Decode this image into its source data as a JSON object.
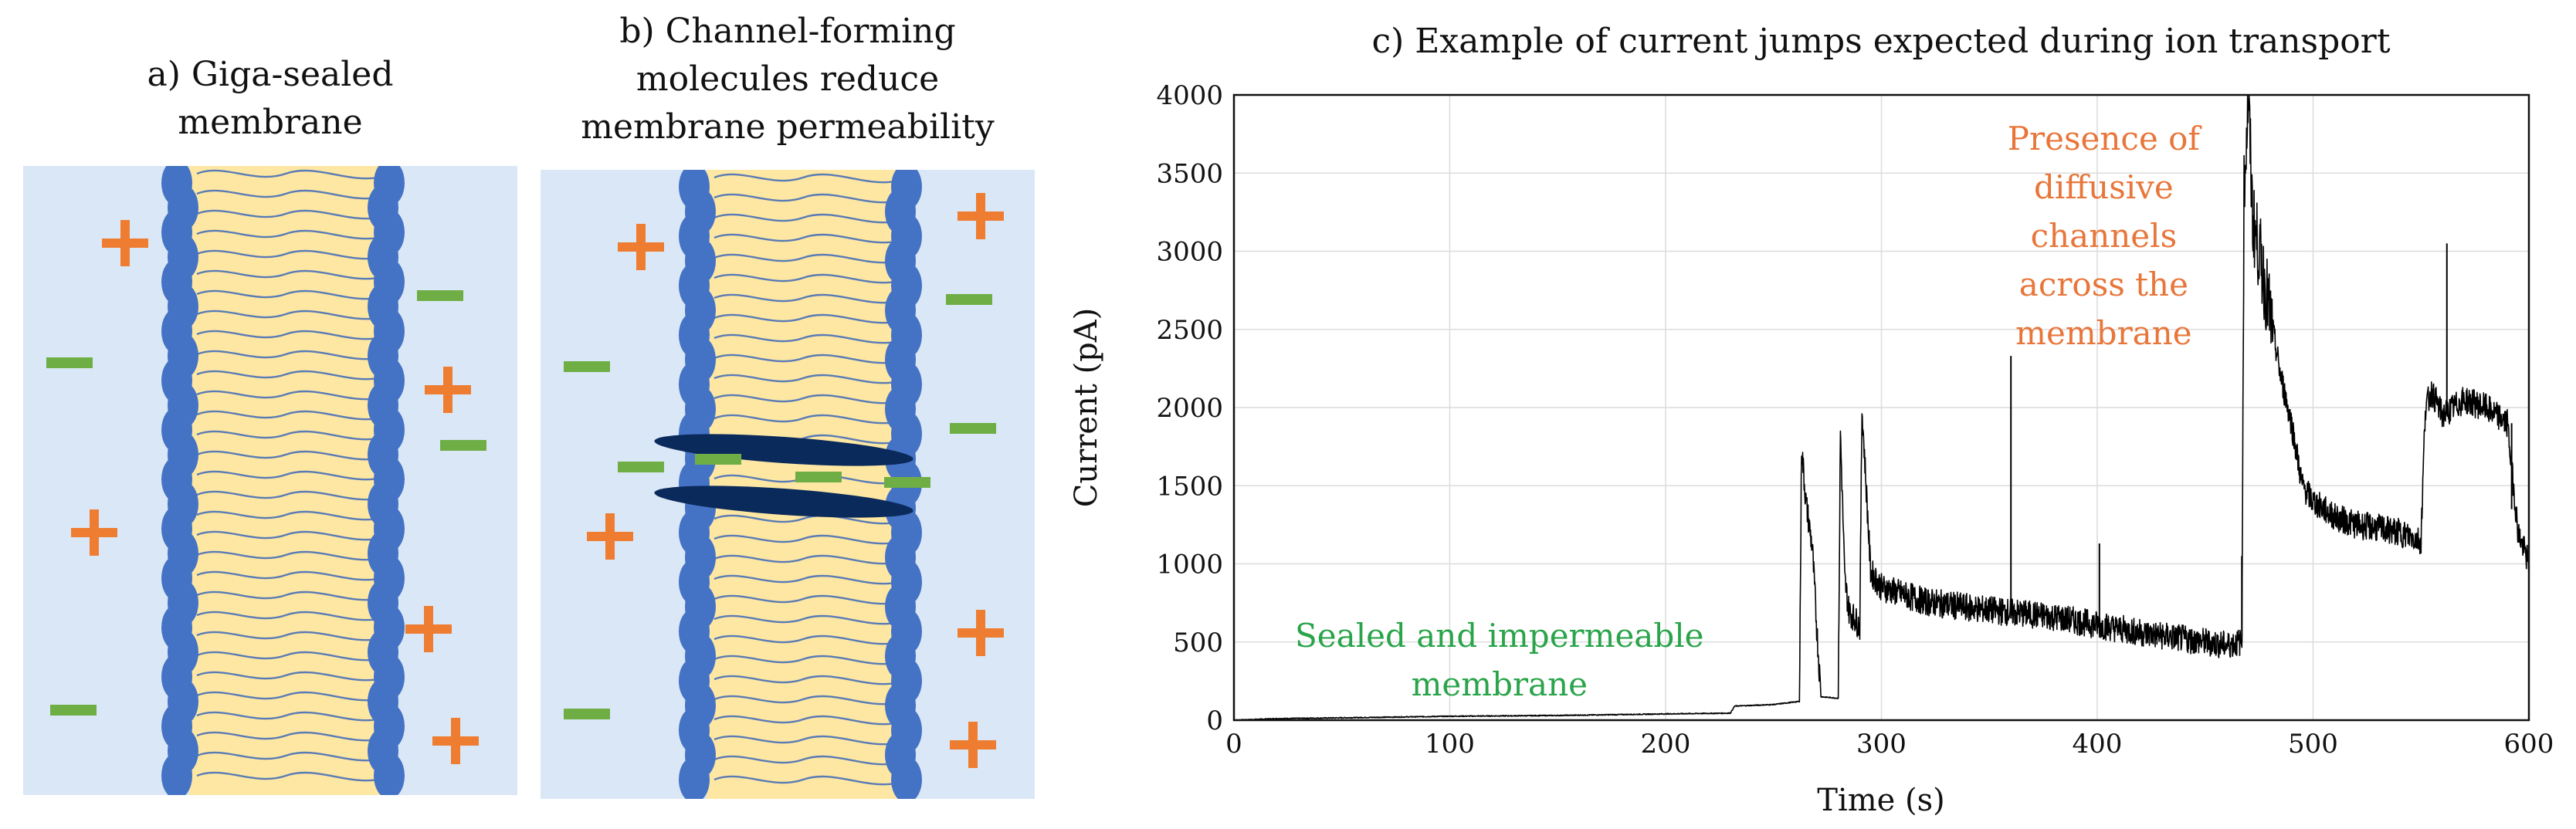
{
  "panel_a": {
    "title_line1": "a) Giga-sealed",
    "title_line2": "membrane"
  },
  "panel_b": {
    "title_line1": "b) Channel-forming",
    "title_line2": "molecules reduce",
    "title_line3": "membrane permeability"
  },
  "colors": {
    "water": "#dae7f6",
    "lipid_core": "#fde7a3",
    "head_group": "#4472c4",
    "tail_line": "#5a7bb5",
    "cation": "#ee7d31",
    "anion": "#6fae45",
    "channel": "#0b2a5c",
    "trace": "#000000",
    "annotation_green": "#2aa44a",
    "annotation_orange": "#e8763a"
  },
  "chart_data": {
    "type": "line",
    "title": "c) Example of current jumps expected during ion transport",
    "xlabel": "Time (s)",
    "ylabel": "Current (pA)",
    "xlim": [
      0,
      600
    ],
    "ylim": [
      0,
      4000
    ],
    "xticks": [
      0,
      100,
      200,
      300,
      400,
      500,
      600
    ],
    "yticks": [
      0,
      500,
      1000,
      1500,
      2000,
      2500,
      3000,
      3500,
      4000
    ],
    "grid": true,
    "annotations": [
      {
        "lines": [
          "Sealed and impermeable",
          "membrane"
        ],
        "x": 123,
        "y": 470,
        "color": "green"
      },
      {
        "lines": [
          "Presence of",
          "diffusive",
          "channels",
          "across the",
          "membrane"
        ],
        "x": 403,
        "y": 3650,
        "color": "orange"
      }
    ],
    "series": [
      {
        "x": [
          0,
          20,
          50,
          100,
          150,
          200,
          230,
          232,
          250,
          262,
          263,
          265,
          268,
          270,
          272,
          280,
          281,
          283,
          285,
          290,
          291,
          295,
          300,
          320,
          340,
          360,
          380,
          400,
          420,
          440,
          460,
          467,
          468,
          470,
          472,
          475,
          480,
          485,
          490,
          495,
          500,
          510,
          520,
          530,
          540,
          550,
          552,
          555,
          560,
          570,
          580,
          590,
          595,
          600
        ],
        "y": [
          0,
          10,
          15,
          25,
          30,
          40,
          45,
          90,
          100,
          120,
          1750,
          1400,
          1100,
          600,
          150,
          140,
          1850,
          900,
          700,
          600,
          2000,
          950,
          850,
          760,
          720,
          690,
          660,
          610,
          560,
          520,
          480,
          500,
          3400,
          4000,
          3200,
          3000,
          2600,
          2200,
          1900,
          1500,
          1400,
          1300,
          1250,
          1230,
          1200,
          1150,
          2000,
          2100,
          1950,
          2050,
          2000,
          1900,
          1200,
          1000
        ]
      }
    ],
    "spikes": [
      {
        "x": 360,
        "y_from": 650,
        "y_to": 2330
      },
      {
        "x": 401,
        "y_from": 600,
        "y_to": 1130
      },
      {
        "x": 467,
        "y_from": 500,
        "y_to": 1050
      },
      {
        "x": 562,
        "y_from": 1950,
        "y_to": 3050
      },
      {
        "x": 592,
        "y_from": 1900,
        "y_to": 1350
      }
    ]
  }
}
